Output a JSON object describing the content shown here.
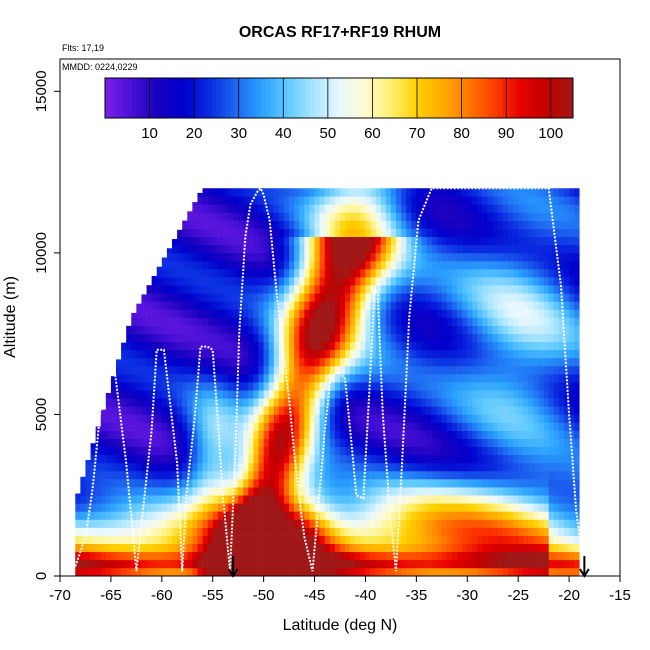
{
  "chart_data": {
    "type": "heatmap",
    "title": "ORCAS RF17+RF19 RHUM",
    "annotations": [
      "Flts: 17,19",
      "MMDD: 0224,0229"
    ],
    "xlabel": "Latitude (deg N)",
    "ylabel": "Altitude (m)",
    "xlim": [
      -70,
      -15
    ],
    "ylim": [
      0,
      16000
    ],
    "x_ticks": [
      "-70",
      "-65",
      "-60",
      "-55",
      "-50",
      "-45",
      "-40",
      "-35",
      "-30",
      "-25",
      "-20",
      "-15"
    ],
    "x_tick_values": [
      -70,
      -65,
      -60,
      -55,
      -50,
      -45,
      -40,
      -35,
      -30,
      -25,
      -20,
      -15
    ],
    "y_ticks": [
      "0",
      "5000",
      "10000",
      "15000"
    ],
    "y_tick_values": [
      0,
      5000,
      10000,
      15000
    ],
    "colorbar": {
      "min": 0,
      "max": 105,
      "tick_labels": [
        "10",
        "20",
        "30",
        "40",
        "50",
        "60",
        "70",
        "80",
        "90",
        "100"
      ],
      "tick_values": [
        10,
        20,
        30,
        40,
        50,
        60,
        70,
        80,
        90,
        100
      ],
      "colors": [
        "#7f1fe8",
        "#4a10d8",
        "#1a00bf",
        "#0000cd",
        "#0a2ae0",
        "#1e66f0",
        "#2aa0ff",
        "#5ec8ff",
        "#a8e4ff",
        "#e8f8ff",
        "#fffbd0",
        "#fff070",
        "#ffd000",
        "#ffaa00",
        "#ff7800",
        "#ff3c00",
        "#e60000",
        "#c00000",
        "#a01818"
      ]
    },
    "takeoff_landing_markers_lat": [
      -53.0,
      -18.5
    ],
    "flight_track": {
      "lat": [
        -68.5,
        -67.5,
        -66.8,
        -65.5,
        -65.3,
        -64.8,
        -63.5,
        -62.5,
        -61.0,
        -60.5,
        -59.8,
        -58.5,
        -58.0,
        -57.6,
        -56.8,
        -56.2,
        -55.5,
        -55.0,
        -54.5,
        -54.0,
        -53.3,
        -52.8,
        -52.4,
        -51.8,
        -51.3,
        -50.6,
        -50.3,
        -50.0,
        -49.4,
        -48.8,
        -48.2,
        -47.5,
        -47.0,
        -46.5,
        -46.0,
        -45.2,
        -44.6,
        -44.0,
        -43.4,
        -42.6,
        -42.0,
        -41.4,
        -40.9,
        -40.2,
        -39.6,
        -39.1,
        -38.8,
        -38.3,
        -37.6,
        -37.0,
        -36.4,
        -35.7,
        -34.8,
        -33.5,
        -31.5,
        -28.5,
        -25.0,
        -22.0,
        -20.8,
        -20.0,
        -19.3,
        -18.5
      ],
      "alt": [
        300,
        1200,
        2700,
        6800,
        6900,
        6800,
        3500,
        150,
        4500,
        7000,
        7000,
        3500,
        150,
        2500,
        4800,
        7100,
        7100,
        7000,
        4800,
        2500,
        150,
        3500,
        7500,
        10500,
        11500,
        11900,
        12000,
        11800,
        11000,
        9000,
        7200,
        5500,
        3800,
        2400,
        1200,
        150,
        2200,
        4500,
        6200,
        6300,
        6100,
        4200,
        2500,
        2400,
        5800,
        8900,
        8700,
        5000,
        2000,
        150,
        3500,
        8000,
        11000,
        12000,
        12000,
        12000,
        12000,
        12000,
        9000,
        5000,
        2000,
        150
      ]
    }
  }
}
